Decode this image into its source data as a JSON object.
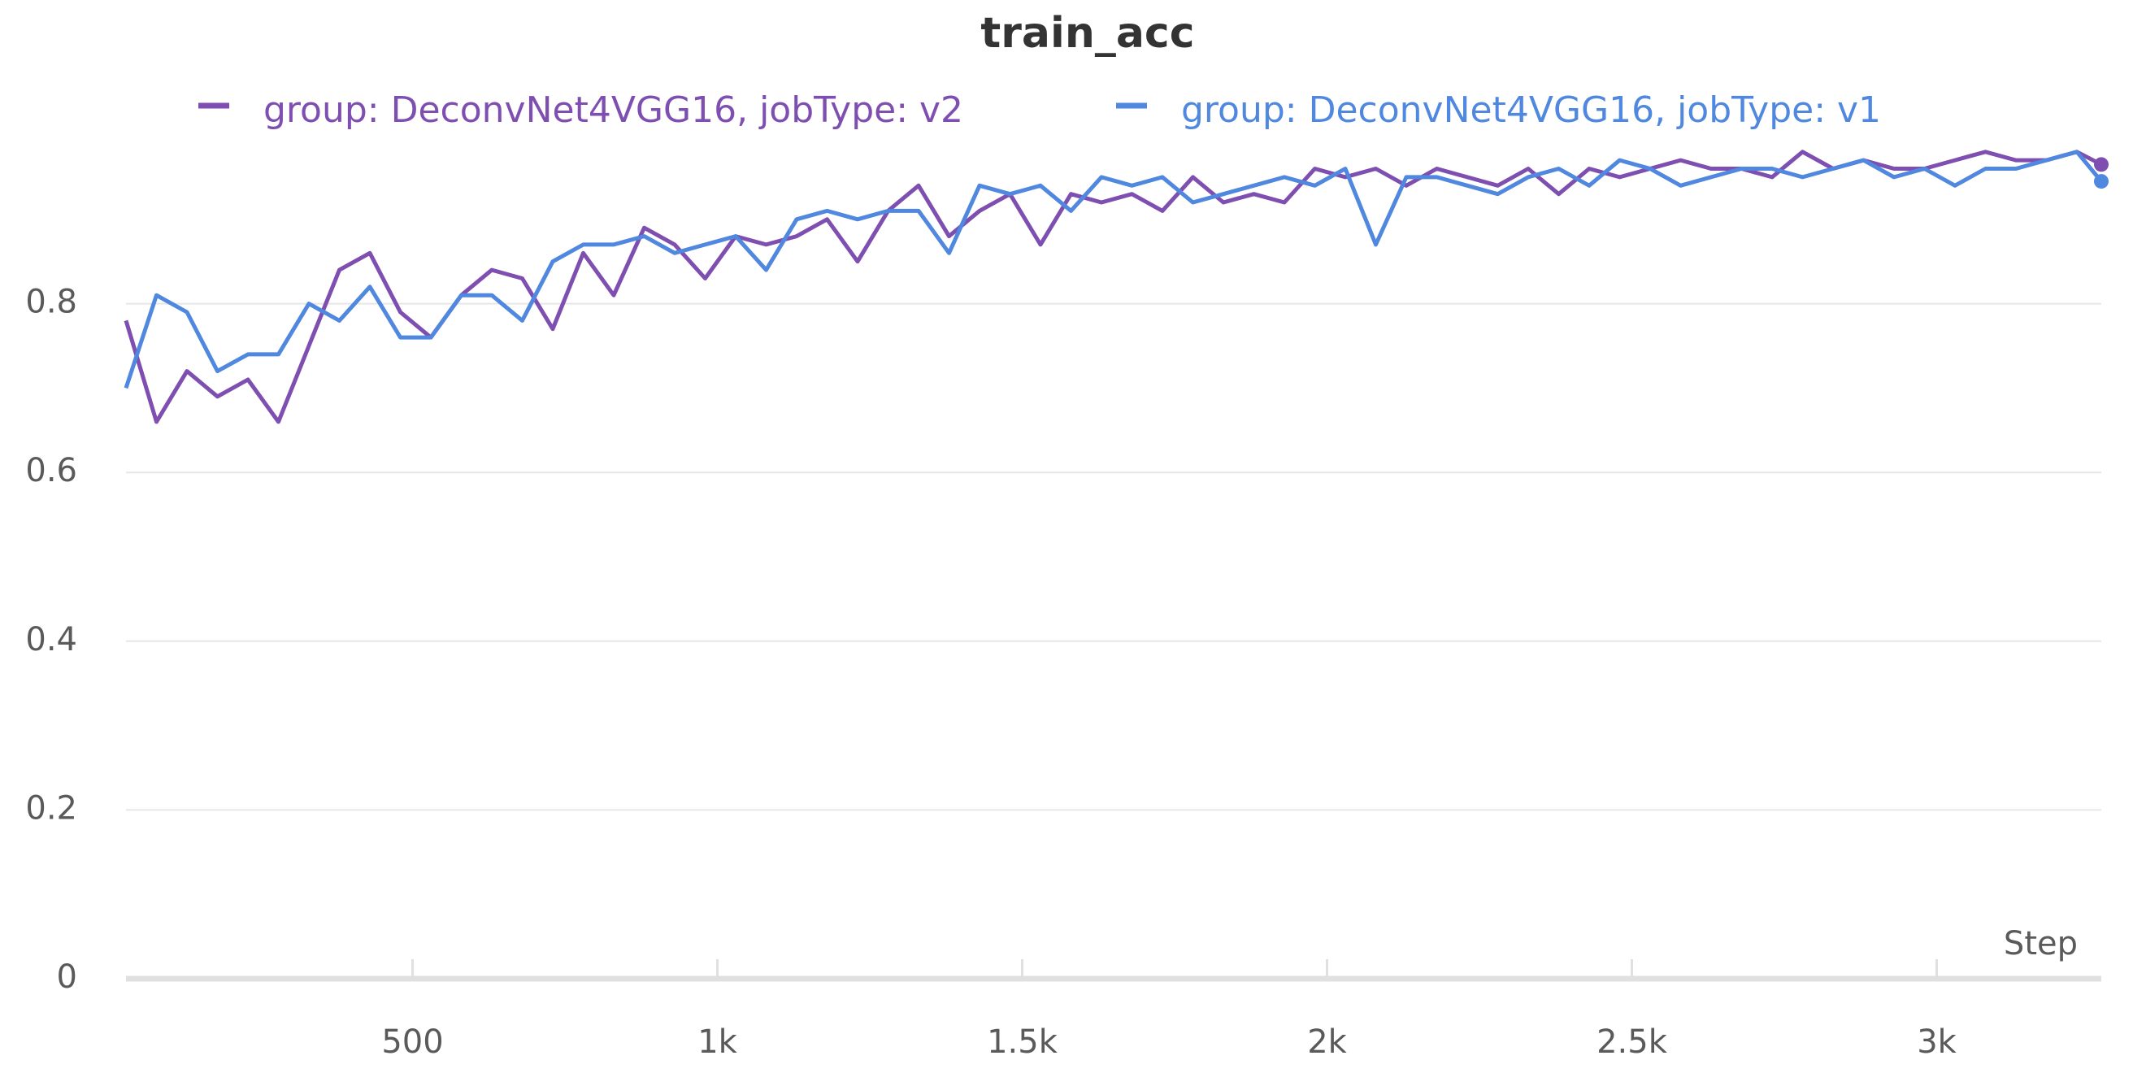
{
  "chart_data": {
    "type": "line",
    "title": "train_acc",
    "x_label": "Step",
    "x": [
      30,
      80,
      130,
      180,
      230,
      280,
      330,
      380,
      430,
      480,
      530,
      580,
      630,
      680,
      730,
      780,
      830,
      880,
      930,
      980,
      1030,
      1080,
      1130,
      1180,
      1230,
      1280,
      1330,
      1380,
      1430,
      1480,
      1530,
      1580,
      1630,
      1680,
      1730,
      1780,
      1830,
      1880,
      1930,
      1980,
      2030,
      2080,
      2130,
      2180,
      2230,
      2280,
      2330,
      2380,
      2430,
      2480,
      2530,
      2580,
      2630,
      2680,
      2730,
      2780,
      2830,
      2880,
      2930,
      2980,
      3030,
      3080,
      3130,
      3180,
      3230,
      3270
    ],
    "series": [
      {
        "name": "group: DeconvNet4VGG16, jobType: v2",
        "color": "#7e4fb0",
        "values": [
          0.78,
          0.66,
          0.72,
          0.69,
          0.71,
          0.66,
          0.75,
          0.84,
          0.86,
          0.79,
          0.76,
          0.81,
          0.84,
          0.83,
          0.77,
          0.86,
          0.81,
          0.89,
          0.87,
          0.83,
          0.88,
          0.87,
          0.88,
          0.9,
          0.85,
          0.91,
          0.94,
          0.88,
          0.91,
          0.93,
          0.87,
          0.93,
          0.92,
          0.93,
          0.91,
          0.95,
          0.92,
          0.93,
          0.92,
          0.96,
          0.95,
          0.96,
          0.94,
          0.96,
          0.95,
          0.94,
          0.96,
          0.93,
          0.96,
          0.95,
          0.96,
          0.97,
          0.96,
          0.96,
          0.95,
          0.98,
          0.96,
          0.97,
          0.96,
          0.96,
          0.97,
          0.98,
          0.97,
          0.97,
          0.98,
          0.965
        ]
      },
      {
        "name": "group: DeconvNet4VGG16, jobType: v1",
        "color": "#5088e0",
        "values": [
          0.7,
          0.81,
          0.79,
          0.72,
          0.74,
          0.74,
          0.8,
          0.78,
          0.82,
          0.76,
          0.76,
          0.81,
          0.81,
          0.78,
          0.85,
          0.87,
          0.87,
          0.88,
          0.86,
          0.87,
          0.88,
          0.84,
          0.9,
          0.91,
          0.9,
          0.91,
          0.91,
          0.86,
          0.94,
          0.93,
          0.94,
          0.91,
          0.95,
          0.94,
          0.95,
          0.92,
          0.93,
          0.94,
          0.95,
          0.94,
          0.96,
          0.87,
          0.95,
          0.95,
          0.94,
          0.93,
          0.95,
          0.96,
          0.94,
          0.97,
          0.96,
          0.94,
          0.95,
          0.96,
          0.96,
          0.95,
          0.96,
          0.97,
          0.95,
          0.96,
          0.94,
          0.96,
          0.96,
          0.97,
          0.98,
          0.945
        ]
      }
    ],
    "xlim": [
      30,
      3270
    ],
    "xticks": [
      500,
      {
        "value": 1000,
        "label": "1k"
      },
      {
        "value": 1500,
        "label": "1.5k"
      },
      {
        "value": 2000,
        "label": "2k"
      },
      {
        "value": 2500,
        "label": "2.5k"
      },
      {
        "value": 3000,
        "label": "3k"
      }
    ],
    "ylim": [
      0,
      1
    ],
    "yticks": [
      0,
      0.2,
      0.4,
      0.6,
      0.8
    ],
    "grid": true,
    "legend": "top"
  }
}
